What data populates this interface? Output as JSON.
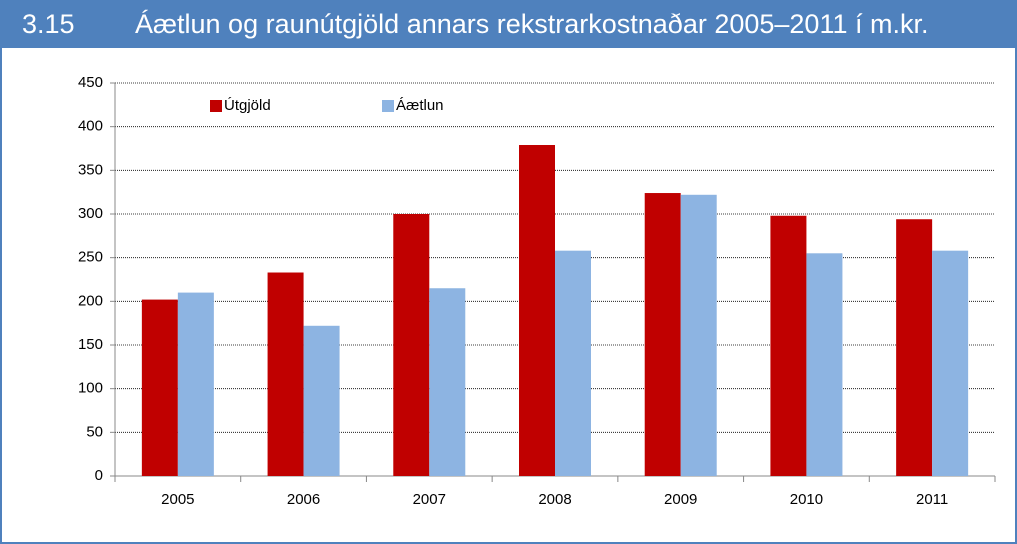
{
  "chart_data": {
    "type": "bar",
    "figure_number": "3.15",
    "title": "Áætlun og raunútgjöld annars rekstrarkostnaðar 2005–2011 í m.kr.",
    "categories": [
      "2005",
      "2006",
      "2007",
      "2008",
      "2009",
      "2010",
      "2011"
    ],
    "series": [
      {
        "name": "Útgjöld",
        "color": "#c00000",
        "values": [
          202,
          233,
          300,
          379,
          324,
          298,
          294
        ]
      },
      {
        "name": "Áætlun",
        "color": "#8db4e2",
        "values": [
          210,
          172,
          215,
          258,
          322,
          255,
          258
        ]
      }
    ],
    "ylim": [
      0,
      450
    ],
    "yticks": [
      0,
      50,
      100,
      150,
      200,
      250,
      300,
      350,
      400,
      450
    ],
    "grid": true,
    "legend": "top-left"
  }
}
